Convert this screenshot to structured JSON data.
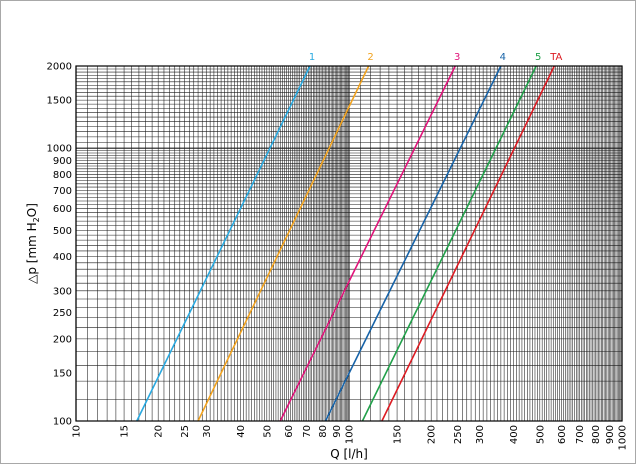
{
  "chart_data": {
    "type": "line",
    "title": "",
    "xlabel": "Q [l/h]",
    "ylabel_parts": [
      "△p [mm H",
      "2",
      "O]"
    ],
    "x_scale": "log",
    "y_scale": "log",
    "xlim": [
      10,
      1000
    ],
    "ylim": [
      100,
      2000
    ],
    "x_ticks": [
      10,
      15,
      20,
      25,
      30,
      40,
      50,
      60,
      70,
      80,
      90,
      100,
      150,
      200,
      250,
      300,
      400,
      500,
      600,
      700,
      800,
      900,
      1000
    ],
    "x_tick_labels": [
      "10",
      "15",
      "20",
      "25",
      "30",
      "40",
      "50",
      "60",
      "70",
      "80",
      "90",
      "100",
      "150",
      "200",
      "250",
      "300",
      "400",
      "500",
      "600",
      "700",
      "800",
      "900",
      "1000"
    ],
    "y_ticks": [
      100,
      150,
      200,
      250,
      300,
      400,
      500,
      600,
      700,
      800,
      900,
      1000,
      1500,
      2000
    ],
    "y_tick_labels": [
      "100",
      "150",
      "200",
      "250",
      "300",
      "400",
      "500",
      "600",
      "700",
      "800",
      "900",
      "1000",
      "1500",
      "2000"
    ],
    "grid": true,
    "legend": "none",
    "series": [
      {
        "name": "1",
        "color": "#29a9e0",
        "points": [
          [
            16.7,
            100
          ],
          [
            72,
            2000
          ]
        ]
      },
      {
        "name": "2",
        "color": "#f2a31f",
        "points": [
          [
            28,
            100
          ],
          [
            118,
            2000
          ]
        ]
      },
      {
        "name": "3",
        "color": "#e0147a",
        "points": [
          [
            56,
            100
          ],
          [
            245,
            2000
          ]
        ]
      },
      {
        "name": "4",
        "color": "#1763a8",
        "points": [
          [
            82,
            100
          ],
          [
            360,
            2000
          ]
        ]
      },
      {
        "name": "5",
        "color": "#21a04a",
        "points": [
          [
            112,
            100
          ],
          [
            485,
            2000
          ]
        ]
      },
      {
        "name": "TA",
        "color": "#dc1b22",
        "points": [
          [
            132,
            100
          ],
          [
            565,
            2000
          ]
        ]
      }
    ]
  }
}
